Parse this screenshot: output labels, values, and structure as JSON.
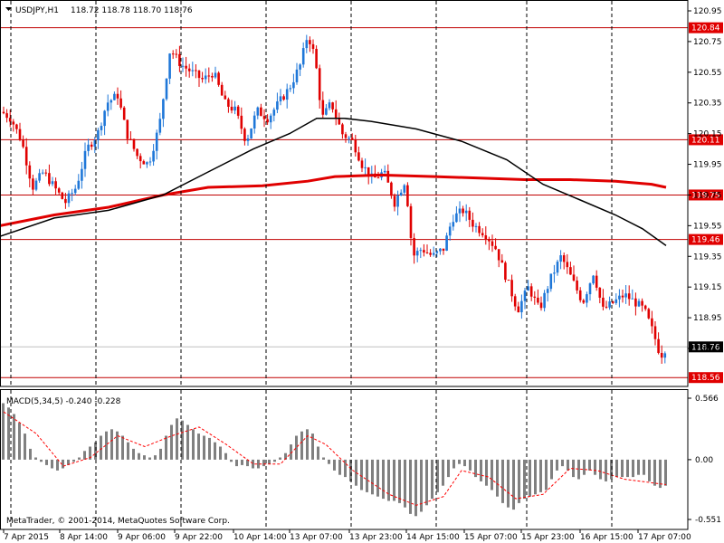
{
  "chart_data": [
    {
      "type": "candlestick",
      "symbol": "USDJPY,H1",
      "ohlc_header": "118.72 118.78 118.70 118.76",
      "ylim": [
        118.56,
        120.95
      ],
      "y_ticks": [
        "120.95",
        "120.75",
        "120.55",
        "120.35",
        "120.15",
        "119.95",
        "119.75",
        "119.55",
        "119.35",
        "119.15",
        "118.95",
        "118.75"
      ],
      "x_ticks": [
        "7 Apr 2015",
        "8 Apr 14:00",
        "9 Apr 06:00",
        "9 Apr 22:00",
        "10 Apr 14:00",
        "13 Apr 07:00",
        "13 Apr 23:00",
        "14 Apr 15:00",
        "15 Apr 07:00",
        "15 Apr 23:00",
        "16 Apr 15:00",
        "17 Apr 07:00"
      ],
      "bull_color": "#1f77d8",
      "bear_color": "#e00000",
      "grid": "vertical-dashed",
      "horizontal_levels": [
        {
          "value": 120.84,
          "label": "120.84"
        },
        {
          "value": 120.11,
          "label": "120.11"
        },
        {
          "value": 119.75,
          "label": "119.75"
        },
        {
          "value": 119.46,
          "label": "119.46"
        },
        {
          "value": 118.56,
          "label": "118.56"
        }
      ],
      "current_price": {
        "value": 118.76,
        "label": "118.76"
      },
      "close_path": [
        [
          0,
          120.3
        ],
        [
          12,
          120.25
        ],
        [
          24,
          120.1
        ],
        [
          36,
          119.8
        ],
        [
          48,
          119.9
        ],
        [
          60,
          119.8
        ],
        [
          72,
          119.7
        ],
        [
          84,
          119.8
        ],
        [
          96,
          120.05
        ],
        [
          108,
          120.15
        ],
        [
          118,
          120.35
        ],
        [
          130,
          120.4
        ],
        [
          140,
          120.15
        ],
        [
          152,
          120.0
        ],
        [
          164,
          119.95
        ],
        [
          176,
          120.2
        ],
        [
          188,
          120.7
        ],
        [
          200,
          120.6
        ],
        [
          212,
          120.55
        ],
        [
          224,
          120.5
        ],
        [
          236,
          120.55
        ],
        [
          248,
          120.35
        ],
        [
          260,
          120.3
        ],
        [
          272,
          120.1
        ],
        [
          284,
          120.3
        ],
        [
          296,
          120.25
        ],
        [
          308,
          120.35
        ],
        [
          320,
          120.45
        ],
        [
          332,
          120.6
        ],
        [
          340,
          120.8
        ],
        [
          348,
          120.65
        ],
        [
          356,
          120.25
        ],
        [
          366,
          120.35
        ],
        [
          378,
          120.15
        ],
        [
          390,
          120.1
        ],
        [
          400,
          119.95
        ],
        [
          412,
          119.85
        ],
        [
          424,
          119.9
        ],
        [
          436,
          119.7
        ],
        [
          448,
          119.85
        ],
        [
          456,
          119.35
        ],
        [
          466,
          119.4
        ],
        [
          478,
          119.35
        ],
        [
          490,
          119.4
        ],
        [
          500,
          119.6
        ],
        [
          512,
          119.65
        ],
        [
          524,
          119.55
        ],
        [
          536,
          119.5
        ],
        [
          548,
          119.4
        ],
        [
          560,
          119.2
        ],
        [
          572,
          119.0
        ],
        [
          584,
          119.15
        ],
        [
          596,
          119.0
        ],
        [
          608,
          119.2
        ],
        [
          620,
          119.35
        ],
        [
          632,
          119.2
        ],
        [
          644,
          119.05
        ],
        [
          656,
          119.25
        ],
        [
          666,
          119.0
        ],
        [
          678,
          119.05
        ],
        [
          690,
          119.1
        ],
        [
          702,
          119.05
        ],
        [
          712,
          119.0
        ],
        [
          722,
          118.85
        ],
        [
          730,
          118.7
        ],
        [
          736,
          118.76
        ]
      ],
      "ma_black": [
        [
          0,
          119.48
        ],
        [
          60,
          119.6
        ],
        [
          120,
          119.65
        ],
        [
          180,
          119.75
        ],
        [
          230,
          119.9
        ],
        [
          280,
          120.05
        ],
        [
          320,
          120.15
        ],
        [
          350,
          120.25
        ],
        [
          380,
          120.25
        ],
        [
          410,
          120.23
        ],
        [
          460,
          120.18
        ],
        [
          510,
          120.1
        ],
        [
          560,
          119.98
        ],
        [
          600,
          119.82
        ],
        [
          640,
          119.72
        ],
        [
          680,
          119.62
        ],
        [
          710,
          119.53
        ],
        [
          736,
          119.42
        ]
      ],
      "ma_red": [
        [
          0,
          119.55
        ],
        [
          60,
          119.62
        ],
        [
          120,
          119.67
        ],
        [
          180,
          119.75
        ],
        [
          230,
          119.8
        ],
        [
          290,
          119.81
        ],
        [
          340,
          119.84
        ],
        [
          370,
          119.87
        ],
        [
          420,
          119.88
        ],
        [
          480,
          119.87
        ],
        [
          530,
          119.86
        ],
        [
          580,
          119.85
        ],
        [
          630,
          119.85
        ],
        [
          680,
          119.84
        ],
        [
          720,
          119.82
        ],
        [
          736,
          119.8
        ]
      ]
    },
    {
      "type": "bar",
      "title": "MACD(5,34,5) -0.240 -0.228",
      "ylim": [
        -0.551,
        0.566
      ],
      "y_ticks": [
        "0.566",
        "0.00",
        "-0.551"
      ],
      "histogram": [
        [
          4,
          0.52
        ],
        [
          10,
          0.48
        ],
        [
          16,
          0.42
        ],
        [
          22,
          0.34
        ],
        [
          28,
          0.24
        ],
        [
          34,
          0.1
        ],
        [
          40,
          0.02
        ],
        [
          46,
          -0.02
        ],
        [
          52,
          -0.05
        ],
        [
          58,
          -0.08
        ],
        [
          64,
          -0.1
        ],
        [
          70,
          -0.08
        ],
        [
          76,
          -0.05
        ],
        [
          82,
          -0.02
        ],
        [
          88,
          0.02
        ],
        [
          94,
          0.08
        ],
        [
          100,
          0.12
        ],
        [
          106,
          0.16
        ],
        [
          112,
          0.22
        ],
        [
          118,
          0.26
        ],
        [
          124,
          0.28
        ],
        [
          130,
          0.26
        ],
        [
          136,
          0.22
        ],
        [
          142,
          0.16
        ],
        [
          148,
          0.1
        ],
        [
          154,
          0.06
        ],
        [
          160,
          0.04
        ],
        [
          166,
          0.02
        ],
        [
          172,
          0.04
        ],
        [
          178,
          0.1
        ],
        [
          184,
          0.22
        ],
        [
          190,
          0.32
        ],
        [
          196,
          0.38
        ],
        [
          202,
          0.36
        ],
        [
          208,
          0.32
        ],
        [
          214,
          0.28
        ],
        [
          220,
          0.24
        ],
        [
          226,
          0.22
        ],
        [
          232,
          0.2
        ],
        [
          238,
          0.16
        ],
        [
          244,
          0.12
        ],
        [
          250,
          0.06
        ],
        [
          256,
          -0.02
        ],
        [
          262,
          -0.06
        ],
        [
          268,
          -0.05
        ],
        [
          274,
          -0.06
        ],
        [
          280,
          -0.08
        ],
        [
          286,
          -0.08
        ],
        [
          292,
          -0.06
        ],
        [
          298,
          -0.04
        ],
        [
          304,
          -0.02
        ],
        [
          310,
          0.02
        ],
        [
          316,
          0.06
        ],
        [
          322,
          0.14
        ],
        [
          328,
          0.22
        ],
        [
          334,
          0.26
        ],
        [
          340,
          0.28
        ],
        [
          346,
          0.24
        ],
        [
          352,
          0.12
        ],
        [
          358,
          0.02
        ],
        [
          364,
          -0.04
        ],
        [
          370,
          -0.1
        ],
        [
          376,
          -0.14
        ],
        [
          382,
          -0.16
        ],
        [
          388,
          -0.2
        ],
        [
          394,
          -0.24
        ],
        [
          400,
          -0.28
        ],
        [
          406,
          -0.3
        ],
        [
          412,
          -0.32
        ],
        [
          418,
          -0.34
        ],
        [
          424,
          -0.36
        ],
        [
          430,
          -0.38
        ],
        [
          436,
          -0.38
        ],
        [
          442,
          -0.4
        ],
        [
          448,
          -0.44
        ],
        [
          454,
          -0.5
        ],
        [
          460,
          -0.52
        ],
        [
          466,
          -0.48
        ],
        [
          472,
          -0.42
        ],
        [
          478,
          -0.36
        ],
        [
          484,
          -0.3
        ],
        [
          490,
          -0.24
        ],
        [
          496,
          -0.16
        ],
        [
          502,
          -0.08
        ],
        [
          508,
          -0.04
        ],
        [
          514,
          -0.06
        ],
        [
          520,
          -0.1
        ],
        [
          526,
          -0.16
        ],
        [
          532,
          -0.2
        ],
        [
          538,
          -0.24
        ],
        [
          544,
          -0.28
        ],
        [
          550,
          -0.34
        ],
        [
          556,
          -0.4
        ],
        [
          562,
          -0.44
        ],
        [
          568,
          -0.46
        ],
        [
          574,
          -0.4
        ],
        [
          580,
          -0.36
        ],
        [
          586,
          -0.34
        ],
        [
          592,
          -0.32
        ],
        [
          598,
          -0.3
        ],
        [
          604,
          -0.28
        ],
        [
          610,
          -0.18
        ],
        [
          616,
          -0.1
        ],
        [
          622,
          -0.06
        ],
        [
          628,
          -0.1
        ],
        [
          634,
          -0.16
        ],
        [
          640,
          -0.18
        ],
        [
          646,
          -0.14
        ],
        [
          652,
          -0.1
        ],
        [
          658,
          -0.14
        ],
        [
          664,
          -0.18
        ],
        [
          670,
          -0.2
        ],
        [
          676,
          -0.18
        ],
        [
          682,
          -0.16
        ],
        [
          688,
          -0.16
        ],
        [
          694,
          -0.16
        ],
        [
          700,
          -0.16
        ],
        [
          706,
          -0.14
        ],
        [
          712,
          -0.14
        ],
        [
          718,
          -0.2
        ],
        [
          724,
          -0.24
        ],
        [
          730,
          -0.26
        ],
        [
          736,
          -0.24
        ]
      ],
      "signal": [
        [
          4,
          0.44
        ],
        [
          40,
          0.24
        ],
        [
          70,
          -0.06
        ],
        [
          100,
          0.02
        ],
        [
          130,
          0.22
        ],
        [
          160,
          0.12
        ],
        [
          190,
          0.22
        ],
        [
          220,
          0.3
        ],
        [
          250,
          0.14
        ],
        [
          280,
          -0.04
        ],
        [
          310,
          -0.04
        ],
        [
          340,
          0.22
        ],
        [
          360,
          0.14
        ],
        [
          390,
          -0.1
        ],
        [
          430,
          -0.32
        ],
        [
          460,
          -0.42
        ],
        [
          490,
          -0.34
        ],
        [
          510,
          -0.1
        ],
        [
          540,
          -0.16
        ],
        [
          570,
          -0.36
        ],
        [
          600,
          -0.32
        ],
        [
          630,
          -0.08
        ],
        [
          660,
          -0.1
        ],
        [
          690,
          -0.18
        ],
        [
          736,
          -0.23
        ]
      ]
    }
  ],
  "watermark": "MetaTrader, © 2001-2014, MetaQuotes Software Corp.",
  "colors": {
    "price_label_bg": "#e00000",
    "level_line": "#c00000",
    "grid": "#000",
    "ma_black": "#000000",
    "ma_red": "#e00000",
    "macd_bar": "#808080",
    "macd_signal": "#ff0000"
  }
}
